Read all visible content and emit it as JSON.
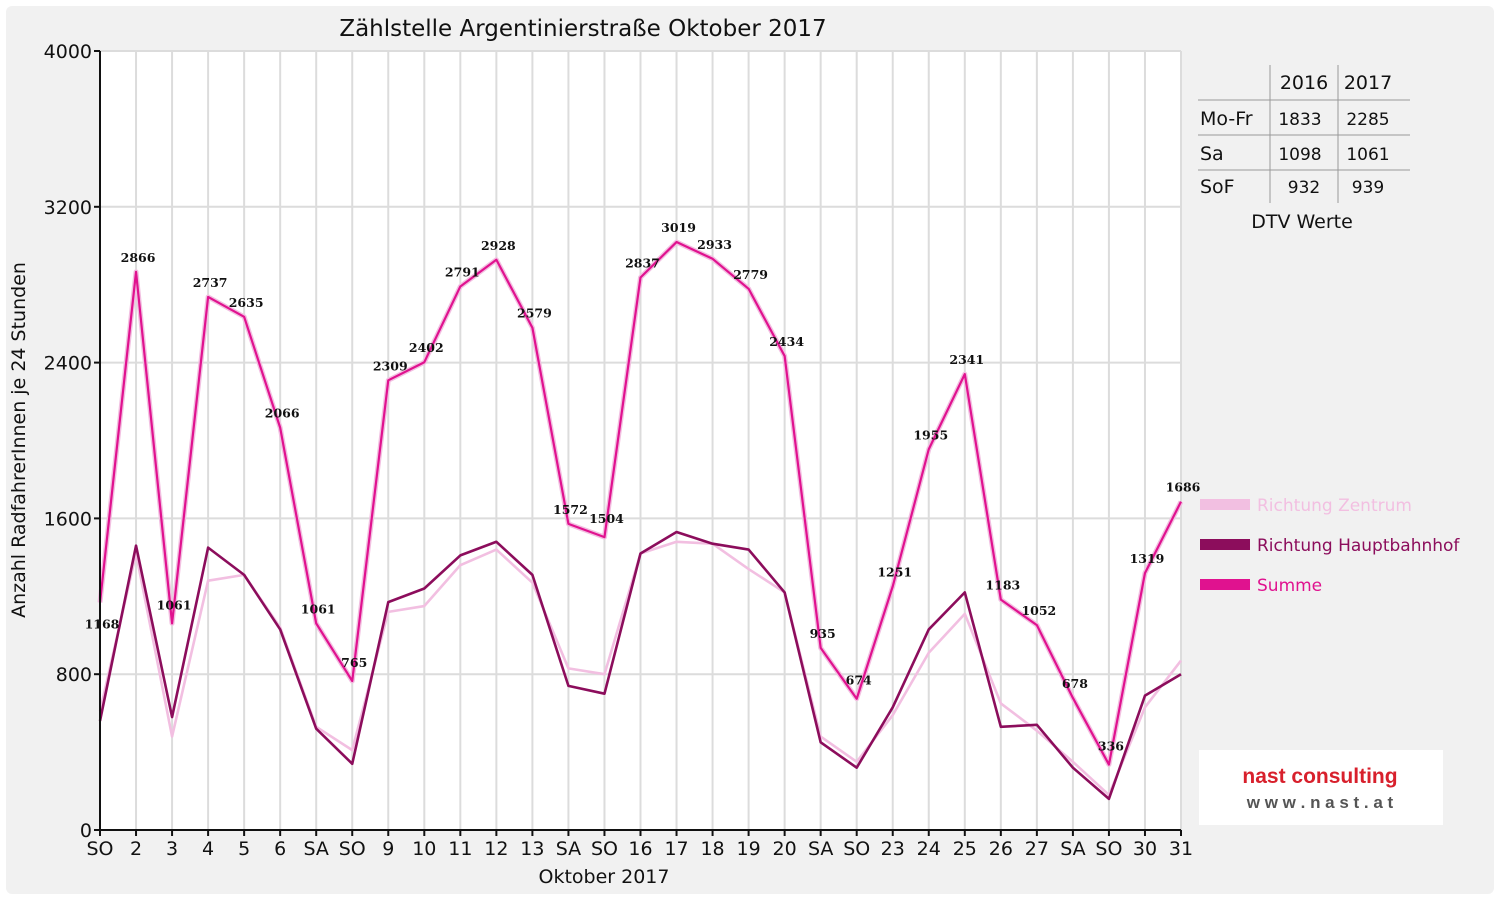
{
  "chart_data": {
    "type": "line",
    "title": "Zählstelle Argentinierstraße Oktober 2017",
    "xlabel": "Oktober 2017",
    "ylabel": "Anzahl RadfahrerInnen je 24 Stunden",
    "ylim": [
      0,
      4000
    ],
    "yticks": [
      0,
      800,
      1600,
      2400,
      3200,
      4000
    ],
    "grid": true,
    "legend_position": "right",
    "categories": [
      "SO",
      "2",
      "3",
      "4",
      "5",
      "6",
      "SA",
      "SO",
      "9",
      "10",
      "11",
      "12",
      "13",
      "SA",
      "SO",
      "16",
      "17",
      "18",
      "19",
      "20",
      "SA",
      "SO",
      "23",
      "24",
      "25",
      "26",
      "27",
      "SA",
      "SO",
      "30",
      "31"
    ],
    "red_categories": [
      0,
      7,
      14,
      21,
      25,
      28
    ],
    "series": [
      {
        "name": "Richtung Zentrum",
        "color": "#f2bfe1",
        "values": [
          610,
          1420,
          480,
          1280,
          1310,
          1040,
          530,
          410,
          1120,
          1150,
          1360,
          1440,
          1270,
          830,
          800,
          1420,
          1480,
          1470,
          1340,
          1220,
          480,
          350,
          590,
          910,
          1110,
          650,
          510,
          350,
          180,
          630,
          870
        ]
      },
      {
        "name": "Richtung Hauptbahnhof",
        "color": "#8c0d5c",
        "values": [
          560,
          1460,
          580,
          1450,
          1310,
          1030,
          520,
          340,
          1170,
          1240,
          1410,
          1480,
          1310,
          740,
          700,
          1420,
          1530,
          1470,
          1440,
          1220,
          450,
          320,
          630,
          1030,
          1220,
          530,
          540,
          320,
          160,
          690,
          800
        ]
      },
      {
        "name": "Summe",
        "color": "#e0128f",
        "values": [
          1168,
          2866,
          1061,
          2737,
          2635,
          2066,
          1061,
          765,
          2309,
          2402,
          2791,
          2928,
          2579,
          1572,
          1504,
          2837,
          3019,
          2933,
          2779,
          2434,
          935,
          674,
          1251,
          1955,
          2341,
          1183,
          1052,
          678,
          336,
          1319,
          1686
        ]
      }
    ],
    "data_labels": [
      "1168",
      "2866",
      "1061",
      "2737",
      "2635",
      "2066",
      "1061",
      "765",
      "2309",
      "2402",
      "2791",
      "2928",
      "2579",
      "1572",
      "1504",
      "2837",
      "3019",
      "2933",
      "2779",
      "2434",
      "935",
      "674",
      "1251",
      "1955",
      "2341",
      "1183",
      "1052",
      "678",
      "336",
      "1319",
      "1686"
    ]
  },
  "dtv_table": {
    "headers": [
      "",
      "2016",
      "2017"
    ],
    "rows": [
      {
        "label": "Mo-Fr",
        "v2016": "1833",
        "v2017": "2285"
      },
      {
        "label": "Sa",
        "v2016": "1098",
        "v2017": "1061"
      },
      {
        "label": "SoF",
        "v2016": "932",
        "v2017": "939"
      }
    ],
    "caption": "DTV Werte"
  },
  "logo": {
    "line1": "nast consulting",
    "line2": "w w w . n a s t . a t"
  },
  "colors": {
    "holiday_red": "#e00000",
    "logo_red": "#d8202c",
    "logo_gray": "#555555"
  }
}
